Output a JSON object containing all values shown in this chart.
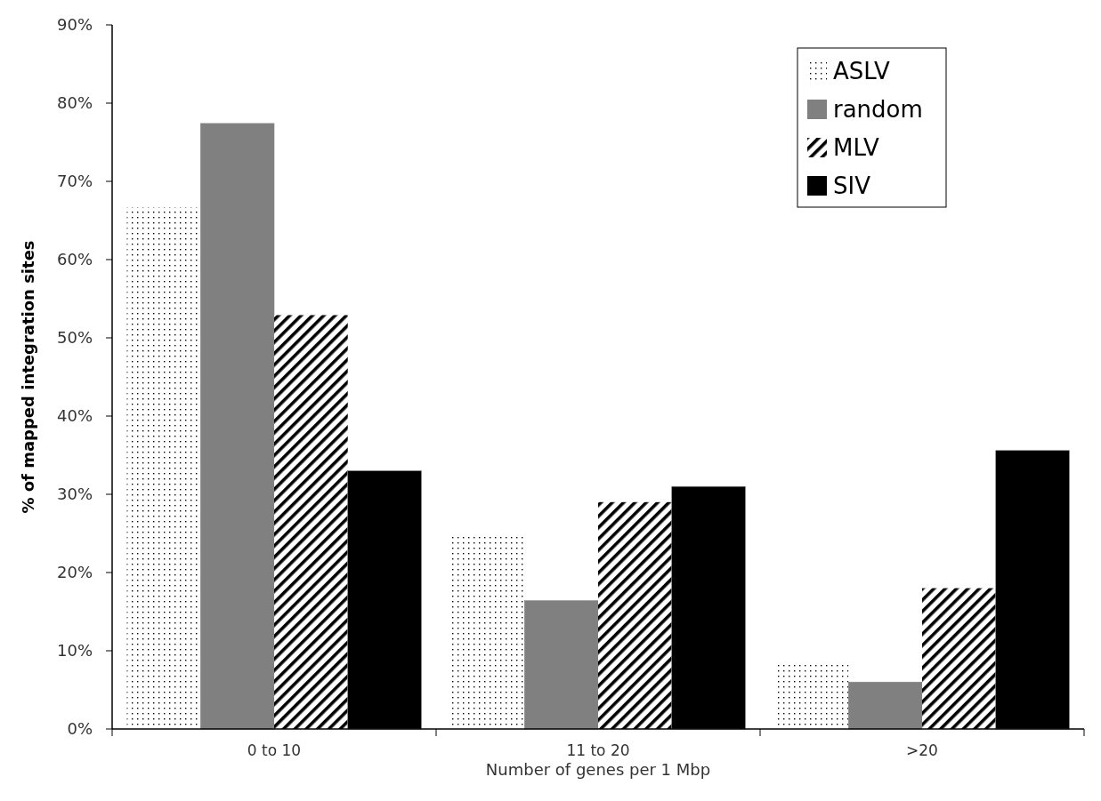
{
  "chart_data": {
    "type": "bar",
    "xlabel": "Number of genes per 1 Mbp",
    "ylabel": "% of mapped integration sites",
    "categories": [
      "0 to 10",
      "11 to 20",
      ">20"
    ],
    "series": [
      {
        "name": "ASLV",
        "color": "#000000",
        "values": [
          66.7,
          24.7,
          8.3
        ]
      },
      {
        "name": "random",
        "color": "#808080",
        "values": [
          77.4,
          16.4,
          6.0
        ]
      },
      {
        "name": "MLV",
        "color": "#000000",
        "values": [
          52.9,
          29.0,
          18.0
        ]
      },
      {
        "name": "SIV",
        "color": "#000000",
        "values": [
          33.0,
          31.0,
          35.6
        ]
      }
    ],
    "ylim": [
      0,
      90
    ],
    "yticks": [
      {
        "value": 0,
        "label": "0%"
      },
      {
        "value": 10,
        "label": "10%"
      },
      {
        "value": 20,
        "label": "20%"
      },
      {
        "value": 30,
        "label": "30%"
      },
      {
        "value": 40,
        "label": "40%"
      },
      {
        "value": 50,
        "label": "50%"
      },
      {
        "value": 60,
        "label": "60%"
      },
      {
        "value": 70,
        "label": "70%"
      },
      {
        "value": 80,
        "label": "80%"
      },
      {
        "value": 90,
        "label": "90%"
      }
    ],
    "legend": "top right",
    "grid": false
  }
}
